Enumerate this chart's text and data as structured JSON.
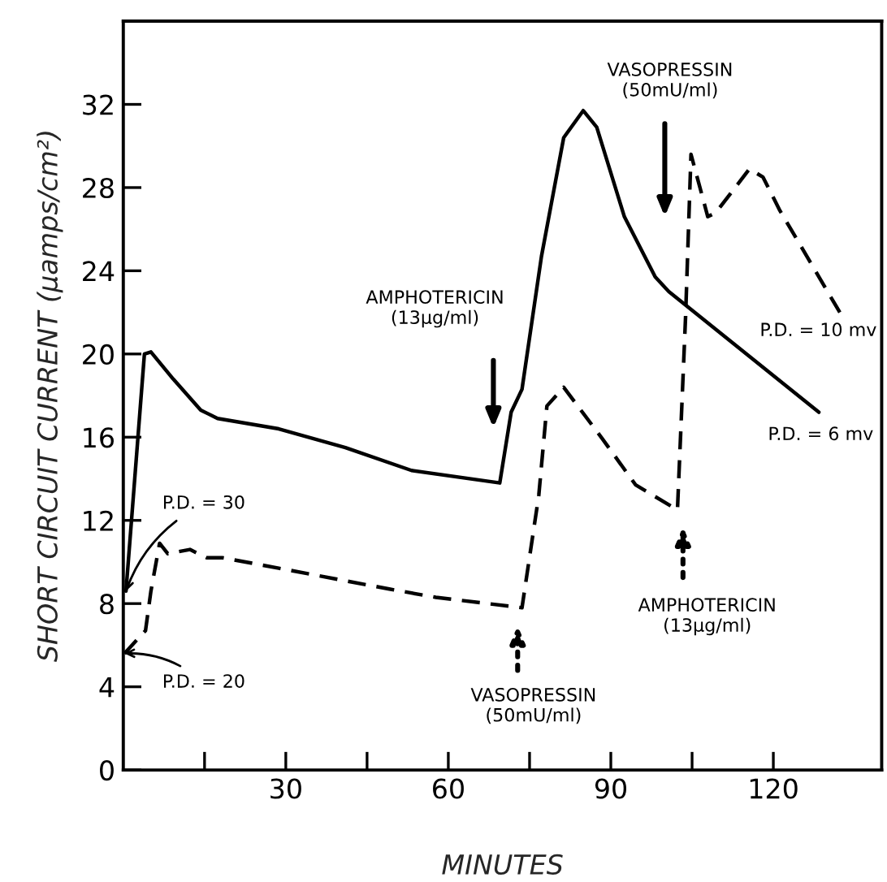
{
  "chart_data": {
    "type": "line",
    "xlabel": "MINUTES",
    "ylabel": "SHORT CIRCUIT CURRENT (μamps/cm²)",
    "xlim": [
      0,
      140
    ],
    "ylim": [
      0,
      36
    ],
    "xticks": [
      {
        "value": 15,
        "label": null
      },
      30,
      {
        "value": 45,
        "label": null
      },
      60,
      {
        "value": 75,
        "label": null
      },
      90,
      {
        "value": 105,
        "label": null
      },
      120
    ],
    "yticks": [
      0,
      4,
      8,
      12,
      16,
      20,
      24,
      28,
      32
    ],
    "grid": false,
    "series": [
      {
        "color": "#000000",
        "line_style": "solid",
        "x": [
          0.5,
          3.9,
          5.1,
          9.2,
          14.3,
          17.4,
          28.7,
          41,
          53.2,
          69.5,
          71.6,
          73.6,
          77.2,
          81.3,
          84.9,
          87.4,
          92.5,
          98.2,
          100.7,
          128.4
        ],
        "values": [
          8.6,
          20.0,
          20.1,
          18.8,
          17.3,
          16.9,
          16.4,
          15.5,
          14.4,
          13.8,
          17.2,
          18.3,
          24.7,
          30.4,
          31.7,
          30.9,
          26.6,
          23.7,
          23.0,
          17.2
        ]
      },
      {
        "color": "#000000",
        "line_style": "dashed",
        "x": [
          0.2,
          4.1,
          5.1,
          6.7,
          8.2,
          12.3,
          15.4,
          18.4,
          28.7,
          49.1,
          57.7,
          73.6,
          76.7,
          78.2,
          81.3,
          88.5,
          94.6,
          102.3,
          103.8,
          104.8,
          107.9,
          109.4,
          115.6,
          118.1,
          121.2,
          132.5
        ],
        "values": [
          5.6,
          6.7,
          8.6,
          10.9,
          10.4,
          10.6,
          10.2,
          10.2,
          9.7,
          8.7,
          8.3,
          7.8,
          13.2,
          17.5,
          18.4,
          15.9,
          13.7,
          12.5,
          21.8,
          29.6,
          26.6,
          26.8,
          28.9,
          28.5,
          26.9,
          21.9
        ]
      }
    ],
    "annotations": [
      "AMPHOTERICIN\n(13μg/ml)",
      "VASOPRESSIN\n(50mU/ml)",
      "VASOPRESSIN\n(50mU/ml)",
      "AMPHOTERICIN\n(13μg/ml)",
      {
        "text": "P.D. = 30",
        "x": 0.5,
        "y": 8.6
      },
      {
        "text": "P.D. = 20",
        "x": 0.2,
        "y": 5.6
      },
      {
        "text": "P.D. = 10 mv",
        "x": 132.5,
        "y": 21.9
      },
      {
        "text": "P.D. = 6 mv",
        "x": 128.4,
        "y": 17.2
      }
    ]
  }
}
